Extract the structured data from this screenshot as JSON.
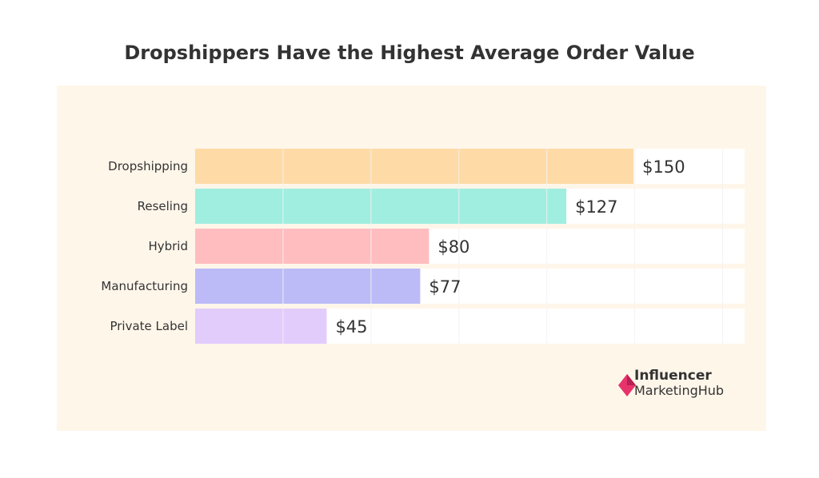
{
  "chart_data": {
    "type": "bar",
    "orientation": "horizontal",
    "title": "Dropshippers Have the Highest Average Order Value",
    "categories": [
      "Dropshipping",
      "Reseling",
      "Hybrid",
      "Manufacturing",
      "Private Label"
    ],
    "values": [
      150,
      127,
      80,
      77,
      45
    ],
    "value_labels": [
      "$150",
      "$127",
      "$80",
      "$77",
      "$45"
    ],
    "colors": [
      "#fedba6",
      "#a0eedf",
      "#ffbdbf",
      "#bcbbf8",
      "#e2ccfc"
    ],
    "xlim": [
      0,
      188
    ],
    "grid": true,
    "xlabel": "",
    "ylabel": ""
  },
  "branding": {
    "line1": "Influencer",
    "line2": "MarketingHub",
    "logo_color": "#e7336b"
  }
}
